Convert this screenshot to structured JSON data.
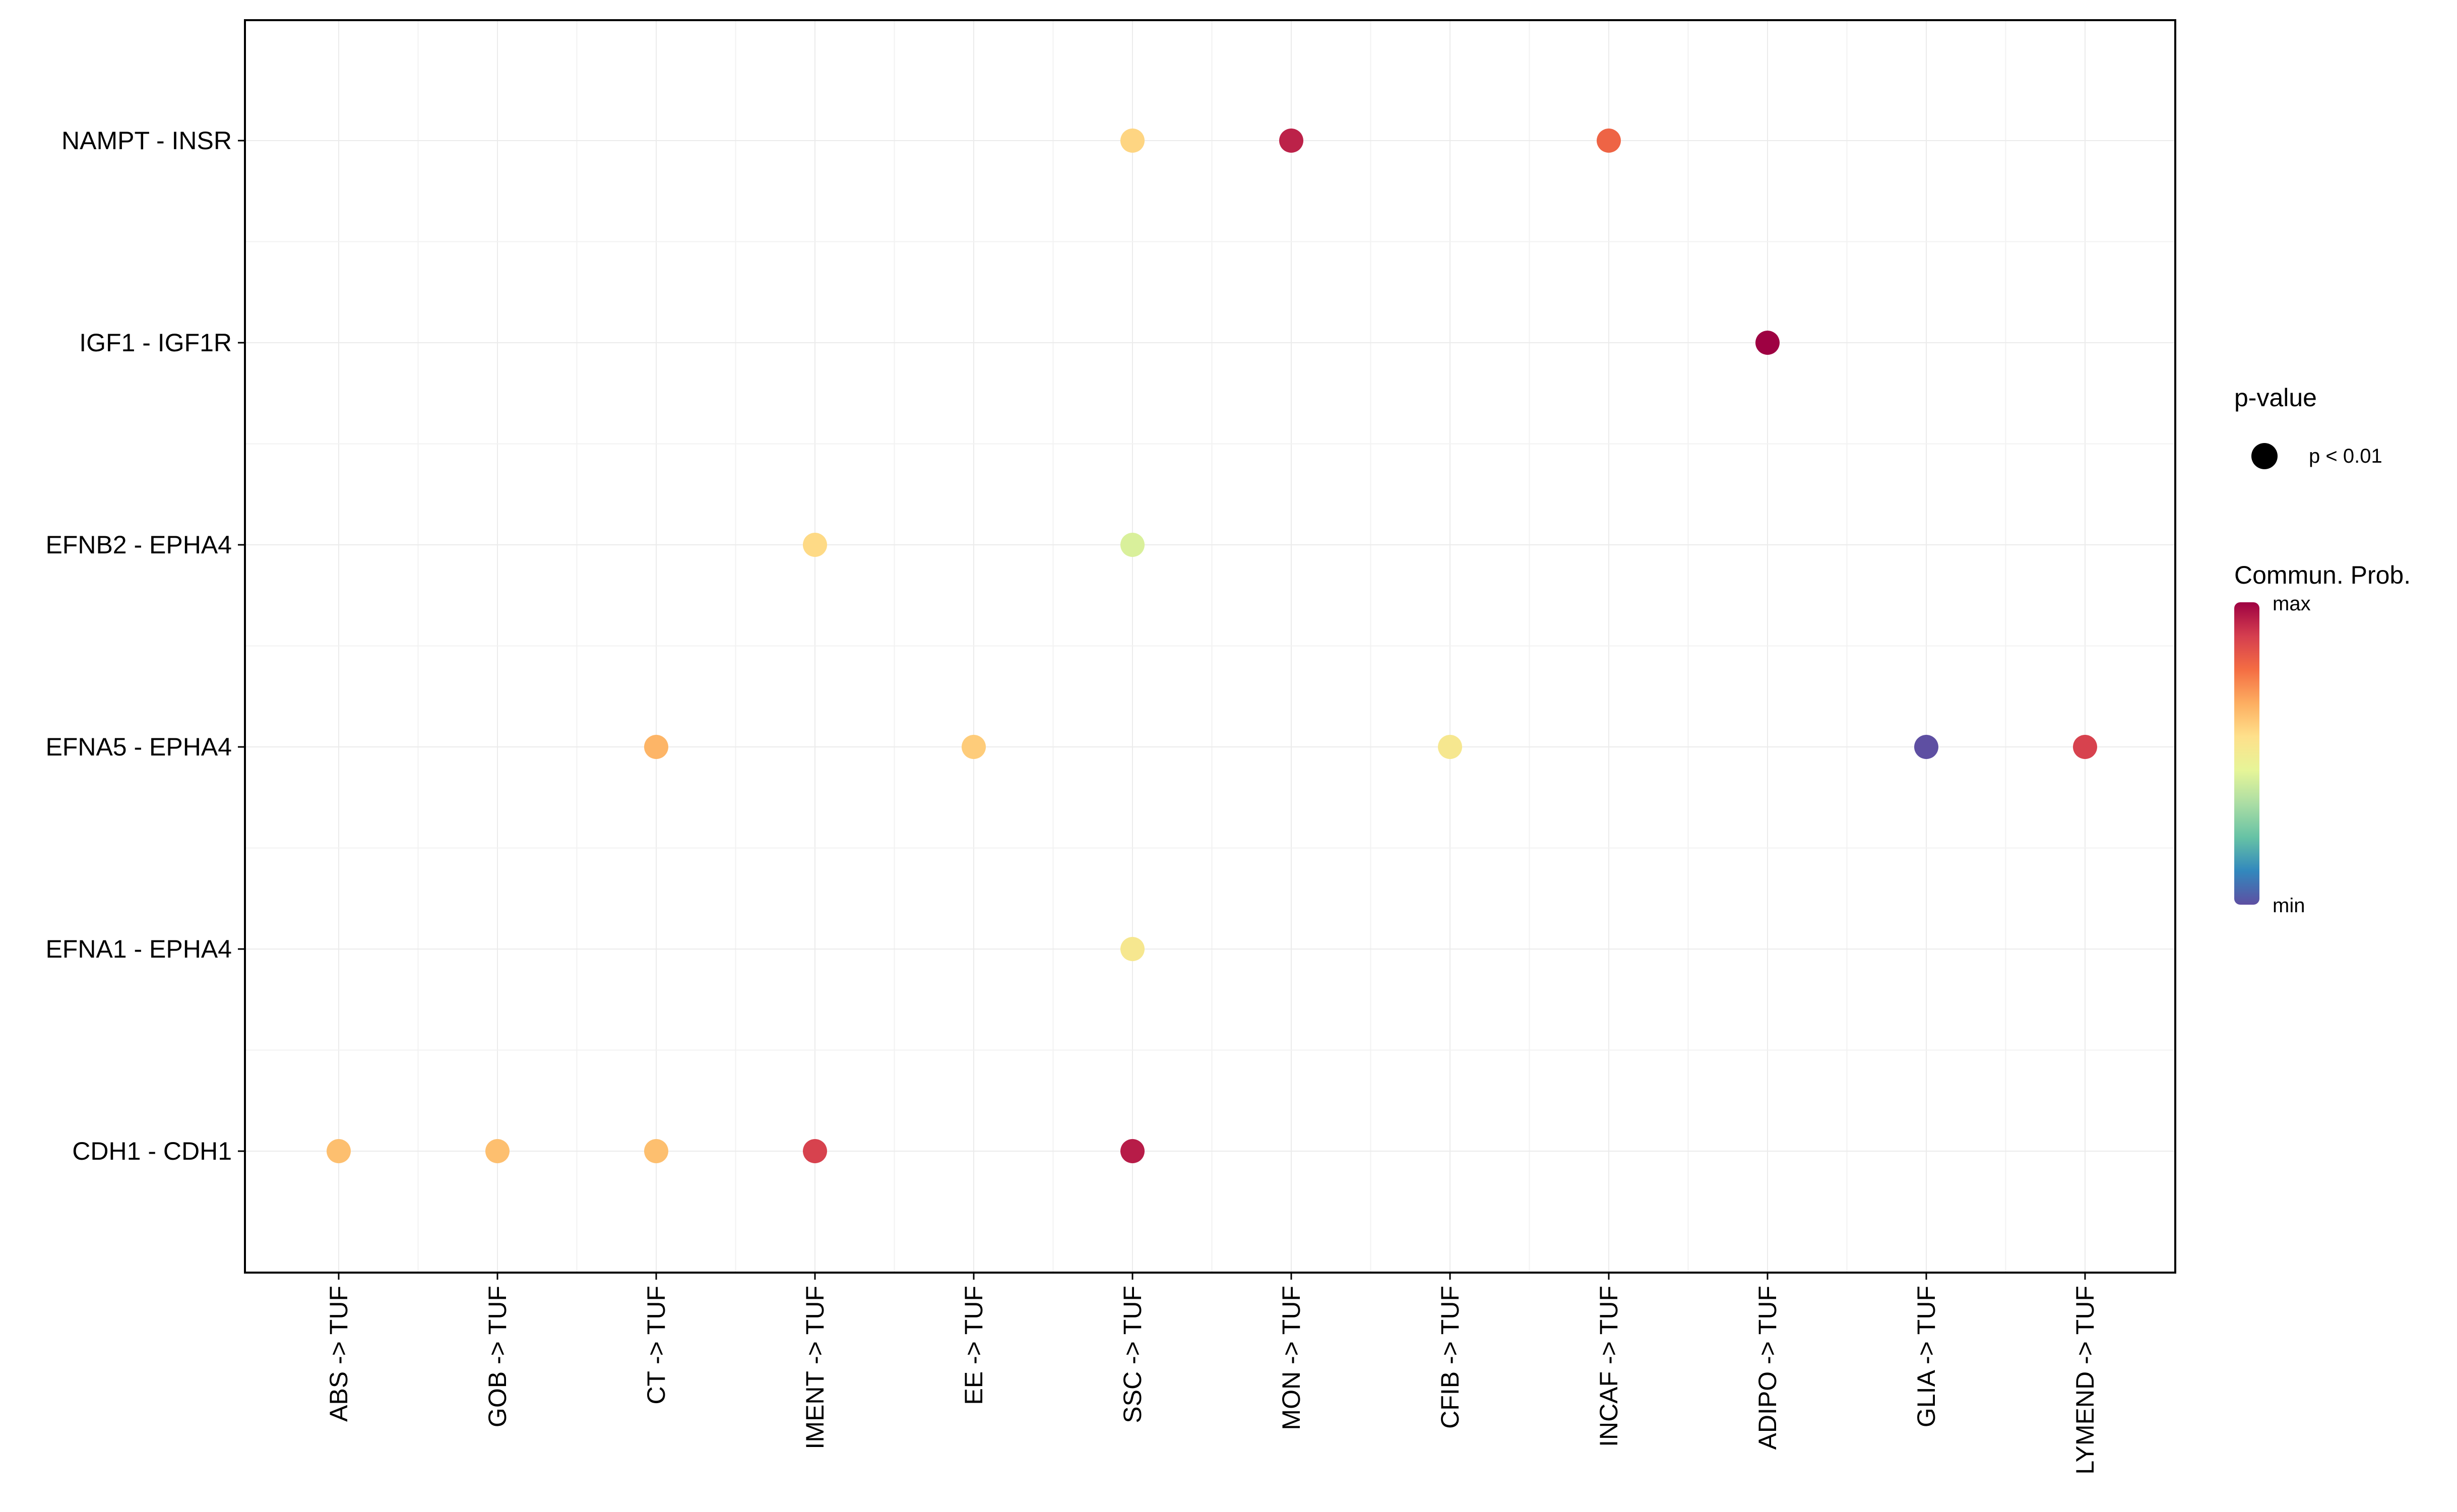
{
  "chart_data": {
    "type": "scatter",
    "title": "",
    "xlabel": "",
    "ylabel": "",
    "grid": true,
    "x_categories": [
      "ABS -> TUF",
      "GOB -> TUF",
      "CT -> TUF",
      "IMENT -> TUF",
      "EE -> TUF",
      "SSC -> TUF",
      "MON -> TUF",
      "CFIB -> TUF",
      "INCAF -> TUF",
      "ADIPO -> TUF",
      "GLIA -> TUF",
      "LYMEND -> TUF"
    ],
    "y_categories": [
      "CDH1 - CDH1",
      "EFNA1 - EPHA4",
      "EFNA5 - EPHA4",
      "EFNB2 - EPHA4",
      "IGF1 - IGF1R",
      "NAMPT - INSR"
    ],
    "prob_scale": "relative 0 (min) to 1 (max)",
    "points": [
      {
        "x": "SSC -> TUF",
        "y": "NAMPT - INSR",
        "prob": 0.58
      },
      {
        "x": "MON -> TUF",
        "y": "NAMPT - INSR",
        "prob": 0.94
      },
      {
        "x": "INCAF -> TUF",
        "y": "NAMPT - INSR",
        "prob": 0.8
      },
      {
        "x": "ADIPO -> TUF",
        "y": "IGF1 - IGF1R",
        "prob": 1.0
      },
      {
        "x": "IMENT -> TUF",
        "y": "EFNB2 - EPHA4",
        "prob": 0.57
      },
      {
        "x": "SSC -> TUF",
        "y": "EFNB2 - EPHA4",
        "prob": 0.42
      },
      {
        "x": "CT -> TUF",
        "y": "EFNA5 - EPHA4",
        "prob": 0.65
      },
      {
        "x": "EE -> TUF",
        "y": "EFNA5 - EPHA4",
        "prob": 0.6
      },
      {
        "x": "CFIB -> TUF",
        "y": "EFNA5 - EPHA4",
        "prob": 0.52
      },
      {
        "x": "GLIA -> TUF",
        "y": "EFNA5 - EPHA4",
        "prob": 0.0
      },
      {
        "x": "LYMEND -> TUF",
        "y": "EFNA5 - EPHA4",
        "prob": 0.88
      },
      {
        "x": "SSC -> TUF",
        "y": "EFNA1 - EPHA4",
        "prob": 0.52
      },
      {
        "x": "ABS -> TUF",
        "y": "CDH1 - CDH1",
        "prob": 0.63
      },
      {
        "x": "GOB -> TUF",
        "y": "CDH1 - CDH1",
        "prob": 0.63
      },
      {
        "x": "CT -> TUF",
        "y": "CDH1 - CDH1",
        "prob": 0.63
      },
      {
        "x": "IMENT -> TUF",
        "y": "CDH1 - CDH1",
        "prob": 0.88
      },
      {
        "x": "SSC -> TUF",
        "y": "CDH1 - CDH1",
        "prob": 0.95
      }
    ],
    "legend": {
      "placement": "right",
      "size_title": "p-value",
      "size_label": "p < 0.01",
      "color_title": "Commun. Prob.",
      "color_max_label": "max",
      "color_min_label": "min"
    },
    "colorscale": [
      "#5e4fa2",
      "#3288bd",
      "#66c2a5",
      "#abdda4",
      "#e6f598",
      "#fee08b",
      "#fdae61",
      "#f46d43",
      "#d53e4f",
      "#9e0142"
    ]
  }
}
